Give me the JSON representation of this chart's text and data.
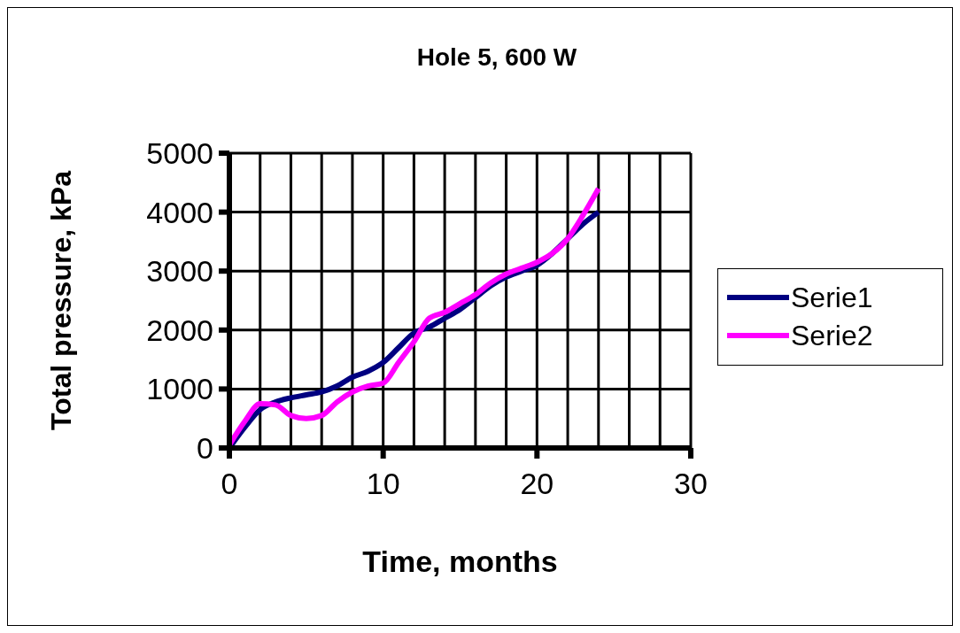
{
  "chart_data": {
    "type": "line",
    "title": "Hole 5, 600 W",
    "xlabel": "Time, months",
    "ylabel": "Total pressure, kPa",
    "x": [
      0,
      1,
      2,
      3,
      4,
      5,
      6,
      7,
      8,
      9,
      10,
      11,
      12,
      13,
      14,
      15,
      16,
      17,
      18,
      19,
      20,
      21,
      22,
      23,
      24
    ],
    "series": [
      {
        "name": "Serie1",
        "color": "#000080",
        "values": [
          0,
          350,
          650,
          780,
          850,
          900,
          950,
          1050,
          1200,
          1300,
          1450,
          1700,
          1950,
          2050,
          2200,
          2350,
          2550,
          2750,
          2900,
          3000,
          3100,
          3300,
          3550,
          3800,
          4000
        ]
      },
      {
        "name": "Serie2",
        "color": "#ff00ff",
        "values": [
          50,
          450,
          750,
          730,
          550,
          500,
          550,
          780,
          950,
          1050,
          1100,
          1450,
          1800,
          2200,
          2300,
          2450,
          2600,
          2800,
          2950,
          3050,
          3150,
          3300,
          3550,
          3950,
          4400
        ]
      }
    ],
    "xlim": [
      0,
      30
    ],
    "xticks": [
      0,
      {
        "value": 2,
        "label": null
      },
      {
        "value": 4,
        "label": null
      },
      {
        "value": 6,
        "label": null
      },
      {
        "value": 8,
        "label": null
      },
      10,
      {
        "value": 12,
        "label": null
      },
      {
        "value": 14,
        "label": null
      },
      {
        "value": 16,
        "label": null
      },
      {
        "value": 18,
        "label": null
      },
      20,
      {
        "value": 22,
        "label": null
      },
      {
        "value": 24,
        "label": null
      },
      {
        "value": 26,
        "label": null
      },
      {
        "value": 28,
        "label": null
      },
      30
    ],
    "ylim": [
      0,
      5000
    ],
    "yticks": [
      0,
      1000,
      2000,
      3000,
      4000,
      5000
    ],
    "grid": true,
    "legend": "right",
    "marker": "none",
    "line_style": "solid"
  }
}
